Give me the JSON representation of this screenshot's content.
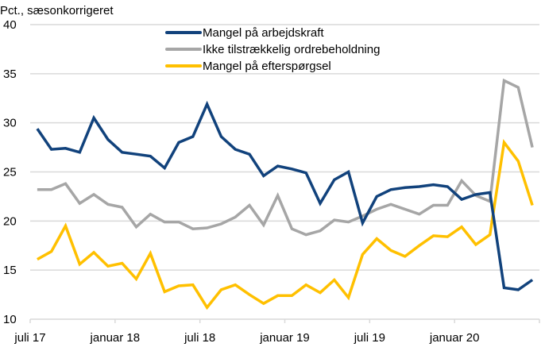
{
  "chart_data": {
    "type": "line",
    "title": "",
    "ylabel": "Pct., sæsonkorrigeret",
    "xlabel": "",
    "ylim": [
      10,
      40
    ],
    "yticks": [
      10,
      15,
      20,
      25,
      30,
      35,
      40
    ],
    "grid": true,
    "legend_position": "top-center",
    "x": [
      "2017-07",
      "2017-08",
      "2017-09",
      "2017-10",
      "2017-11",
      "2017-12",
      "2018-01",
      "2018-02",
      "2018-03",
      "2018-04",
      "2018-05",
      "2018-06",
      "2018-07",
      "2018-08",
      "2018-09",
      "2018-10",
      "2018-11",
      "2018-12",
      "2019-01",
      "2019-02",
      "2019-03",
      "2019-04",
      "2019-05",
      "2019-06",
      "2019-07",
      "2019-08",
      "2019-09",
      "2019-10",
      "2019-11",
      "2019-12",
      "2020-01",
      "2020-02",
      "2020-03",
      "2020-04",
      "2020-05",
      "2020-06"
    ],
    "xtick_labels": [
      {
        "label": "juli 17",
        "index": 0
      },
      {
        "label": "januar 18",
        "index": 6
      },
      {
        "label": "juli 18",
        "index": 12
      },
      {
        "label": "januar 19",
        "index": 18
      },
      {
        "label": "juli 19",
        "index": 24
      },
      {
        "label": "januar 20",
        "index": 30
      }
    ],
    "series": [
      {
        "name": "Mangel på arbejdskraft",
        "color": "#11427C",
        "values": [
          29.4,
          27.3,
          27.4,
          27.0,
          30.5,
          28.3,
          27.0,
          26.8,
          26.6,
          25.4,
          28.0,
          28.6,
          31.9,
          28.6,
          27.3,
          26.8,
          24.6,
          25.6,
          25.3,
          24.9,
          21.8,
          24.2,
          25.0,
          19.8,
          22.5,
          23.2,
          23.4,
          23.5,
          23.7,
          23.5,
          22.2,
          22.7,
          22.9,
          13.2,
          13.0,
          14.0
        ]
      },
      {
        "name": "Ikke tilstrækkelig ordrebeholdning",
        "color": "#A6A6A6",
        "values": [
          23.2,
          23.2,
          23.8,
          21.8,
          22.7,
          21.7,
          21.4,
          19.4,
          20.7,
          19.9,
          19.9,
          19.2,
          19.3,
          19.7,
          20.4,
          21.6,
          19.6,
          22.6,
          19.2,
          18.6,
          19.0,
          20.1,
          19.9,
          20.5,
          21.2,
          21.7,
          21.2,
          20.7,
          21.6,
          21.6,
          24.1,
          22.6,
          22.0,
          34.3,
          33.6,
          27.5
        ]
      },
      {
        "name": "Mangel på efterspørgsel",
        "color": "#FFC000",
        "values": [
          16.1,
          16.9,
          19.5,
          15.6,
          16.8,
          15.4,
          15.7,
          14.1,
          16.7,
          12.8,
          13.4,
          13.5,
          11.2,
          13.0,
          13.5,
          12.5,
          11.6,
          12.4,
          12.4,
          13.5,
          12.7,
          14.0,
          12.2,
          16.6,
          18.2,
          17.0,
          16.4,
          17.5,
          18.5,
          18.4,
          19.4,
          17.6,
          18.6,
          28.0,
          26.1,
          21.6
        ]
      }
    ]
  }
}
